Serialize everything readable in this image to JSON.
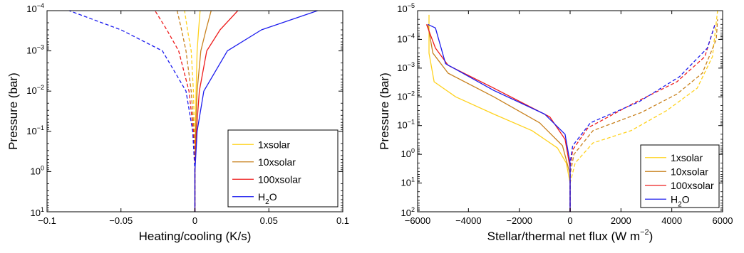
{
  "chart_data": [
    {
      "type": "line",
      "xlabel": "Heating/cooling (K/s)",
      "ylabel": "Pressure (bar)",
      "xlim": [
        -0.1,
        0.1
      ],
      "ylim": [
        10,
        0.0001
      ],
      "y_scale": "log",
      "y_reversed": true,
      "grid": false,
      "legend_position": "lower-right",
      "x_ticks": [
        -0.1,
        -0.05,
        0,
        0.05,
        0.1
      ],
      "x_tick_labels": [
        "−0.1",
        "−0.05",
        "0",
        "0.05",
        "0.1"
      ],
      "y_ticks": [
        {
          "value": 0.0001,
          "base": "10",
          "exp": "−4"
        },
        {
          "value": 0.001,
          "base": "10",
          "exp": "−3"
        },
        {
          "value": 0.01,
          "base": "10",
          "exp": "−2"
        },
        {
          "value": 0.1,
          "base": "10",
          "exp": "−1"
        },
        {
          "value": 1,
          "base": "10",
          "exp": "0"
        },
        {
          "value": 10,
          "base": "10",
          "exp": "1"
        }
      ],
      "legend": [
        {
          "label": "1xsolar",
          "color": "#FFD21E"
        },
        {
          "label": "10xsolar",
          "color": "#C8811E"
        },
        {
          "label": "100xsolar",
          "color": "#EE1C1C"
        },
        {
          "label": "H",
          "sub": "2",
          "label_tail": "O",
          "color": "#1C1CEE"
        }
      ],
      "series": [
        {
          "color": "#FFD21E",
          "dashed": false,
          "points": [
            [
              0.0,
              10
            ],
            [
              0.0,
              1
            ],
            [
              0.0003,
              0.1
            ],
            [
              0.0008,
              0.01
            ],
            [
              0.0015,
              0.001
            ],
            [
              0.0025,
              0.0003
            ],
            [
              0.0035,
              0.0001
            ]
          ]
        },
        {
          "color": "#FFD21E",
          "dashed": true,
          "points": [
            [
              0.0,
              10
            ],
            [
              0.0,
              1
            ],
            [
              -0.0003,
              0.1
            ],
            [
              -0.001,
              0.01
            ],
            [
              -0.0025,
              0.001
            ],
            [
              -0.005,
              0.0003
            ],
            [
              -0.007,
              0.0001
            ]
          ]
        },
        {
          "color": "#C8811E",
          "dashed": false,
          "points": [
            [
              0.0,
              10
            ],
            [
              0.0,
              1
            ],
            [
              0.0005,
              0.1
            ],
            [
              0.0015,
              0.01
            ],
            [
              0.004,
              0.001
            ],
            [
              0.0075,
              0.0003
            ],
            [
              0.011,
              0.0001
            ]
          ]
        },
        {
          "color": "#C8811E",
          "dashed": true,
          "points": [
            [
              0.0,
              10
            ],
            [
              0.0,
              1
            ],
            [
              -0.0006,
              0.1
            ],
            [
              -0.0025,
              0.01
            ],
            [
              -0.006,
              0.001
            ],
            [
              -0.009,
              0.0003
            ],
            [
              -0.012,
              0.0001
            ]
          ]
        },
        {
          "color": "#EE1C1C",
          "dashed": false,
          "points": [
            [
              0.0,
              10
            ],
            [
              0.0,
              1
            ],
            [
              0.001,
              0.1
            ],
            [
              0.003,
              0.01
            ],
            [
              0.008,
              0.001
            ],
            [
              0.017,
              0.0003
            ],
            [
              0.029,
              0.0001
            ]
          ]
        },
        {
          "color": "#EE1C1C",
          "dashed": true,
          "points": [
            [
              0.0,
              10
            ],
            [
              0.0,
              1
            ],
            [
              -0.001,
              0.1
            ],
            [
              -0.004,
              0.01
            ],
            [
              -0.011,
              0.001
            ],
            [
              -0.019,
              0.0003
            ],
            [
              -0.027,
              0.0001
            ]
          ]
        },
        {
          "color": "#1C1CEE",
          "dashed": false,
          "points": [
            [
              0.0,
              10
            ],
            [
              0.0,
              1
            ],
            [
              0.0015,
              0.1
            ],
            [
              0.006,
              0.01
            ],
            [
              0.022,
              0.001
            ],
            [
              0.045,
              0.0003
            ],
            [
              0.083,
              0.0001
            ]
          ]
        },
        {
          "color": "#1C1CEE",
          "dashed": true,
          "points": [
            [
              0.0,
              10
            ],
            [
              0.0,
              1
            ],
            [
              -0.0015,
              0.1
            ],
            [
              -0.006,
              0.01
            ],
            [
              -0.022,
              0.001
            ],
            [
              -0.05,
              0.0003
            ],
            [
              -0.085,
              0.0001
            ]
          ]
        }
      ]
    },
    {
      "type": "line",
      "xlabel": "Stellar/thermal net flux (W m",
      "xlabel_sup": "−2",
      "xlabel_tail": ")",
      "ylabel": "Pressure (bar)",
      "xlim": [
        -6000,
        6000
      ],
      "ylim": [
        100,
        1e-05
      ],
      "y_scale": "log",
      "y_reversed": true,
      "grid": false,
      "legend_position": "lower-right",
      "x_ticks": [
        -6000,
        -4000,
        -2000,
        0,
        2000,
        4000,
        6000
      ],
      "x_tick_labels": [
        "−6000",
        "−4000",
        "−2000",
        "0",
        "2000",
        "4000",
        "6000"
      ],
      "y_ticks": [
        {
          "value": 1e-05,
          "base": "10",
          "exp": "−5"
        },
        {
          "value": 0.0001,
          "base": "10",
          "exp": "−4"
        },
        {
          "value": 0.001,
          "base": "10",
          "exp": "−3"
        },
        {
          "value": 0.01,
          "base": "10",
          "exp": "−2"
        },
        {
          "value": 0.1,
          "base": "10",
          "exp": "−1"
        },
        {
          "value": 1,
          "base": "10",
          "exp": "0"
        },
        {
          "value": 10,
          "base": "10",
          "exp": "1"
        },
        {
          "value": 100,
          "base": "10",
          "exp": "2"
        }
      ],
      "legend": [
        {
          "label": "1xsolar",
          "color": "#FFD21E"
        },
        {
          "label": "10xsolar",
          "color": "#C8811E"
        },
        {
          "label": "100xsolar",
          "color": "#EE1C1C"
        },
        {
          "label": "H",
          "sub": "2",
          "label_tail": "O",
          "color": "#1C1CEE"
        }
      ],
      "series": [
        {
          "color": "#FFD21E",
          "dashed": false,
          "points": [
            [
              -5550,
              1.4e-05
            ],
            [
              -5550,
              0.0003
            ],
            [
              -5350,
              0.003
            ],
            [
              -4500,
              0.01
            ],
            [
              -3000,
              0.04
            ],
            [
              -1500,
              0.15
            ],
            [
              -500,
              0.6
            ],
            [
              -150,
              2
            ],
            [
              0,
              10
            ],
            [
              0,
              100
            ]
          ]
        },
        {
          "color": "#FFD21E",
          "dashed": true,
          "points": [
            [
              0,
              100
            ],
            [
              0,
              10
            ],
            [
              200,
              2
            ],
            [
              900,
              0.4
            ],
            [
              2400,
              0.15
            ],
            [
              3800,
              0.03
            ],
            [
              5000,
              0.005
            ],
            [
              5600,
              0.0004
            ],
            [
              5800,
              1e-05
            ]
          ]
        },
        {
          "color": "#C8811E",
          "dashed": false,
          "points": [
            [
              -5600,
              3e-05
            ],
            [
              -5400,
              0.0003
            ],
            [
              -4800,
              0.0015
            ],
            [
              -3000,
              0.01
            ],
            [
              -1200,
              0.08
            ],
            [
              -300,
              0.5
            ],
            [
              0,
              5
            ],
            [
              0,
              100
            ]
          ]
        },
        {
          "color": "#C8811E",
          "dashed": true,
          "points": [
            [
              0,
              100
            ],
            [
              0,
              5
            ],
            [
              150,
              1
            ],
            [
              900,
              0.15
            ],
            [
              2800,
              0.035
            ],
            [
              4200,
              0.008
            ],
            [
              5200,
              0.0015
            ],
            [
              5750,
              0.0001
            ],
            [
              5800,
              2e-05
            ]
          ]
        },
        {
          "color": "#EE1C1C",
          "dashed": false,
          "points": [
            [
              -5650,
              3e-05
            ],
            [
              -5300,
              0.0002
            ],
            [
              -4800,
              0.0008
            ],
            [
              -3000,
              0.005
            ],
            [
              -800,
              0.05
            ],
            [
              -200,
              0.3
            ],
            [
              0,
              3
            ],
            [
              0,
              100
            ]
          ]
        },
        {
          "color": "#EE1C1C",
          "dashed": true,
          "points": [
            [
              0,
              100
            ],
            [
              0,
              3
            ],
            [
              100,
              0.7
            ],
            [
              700,
              0.12
            ],
            [
              2600,
              0.015
            ],
            [
              4200,
              0.003
            ],
            [
              5300,
              0.0004
            ],
            [
              5700,
              3e-05
            ]
          ]
        },
        {
          "color": "#1C1CEE",
          "dashed": false,
          "points": [
            [
              -5600,
              3e-05
            ],
            [
              -5300,
              4e-05
            ],
            [
              -4900,
              0.0007
            ],
            [
              -3000,
              0.006
            ],
            [
              -1000,
              0.04
            ],
            [
              -200,
              0.2
            ],
            [
              0,
              2
            ],
            [
              0,
              100
            ]
          ]
        },
        {
          "color": "#1C1CEE",
          "dashed": true,
          "points": [
            [
              0,
              100
            ],
            [
              0,
              2
            ],
            [
              100,
              0.5
            ],
            [
              800,
              0.08
            ],
            [
              2700,
              0.015
            ],
            [
              4300,
              0.002
            ],
            [
              5400,
              0.0002
            ],
            [
              5700,
              3e-05
            ]
          ]
        }
      ]
    }
  ]
}
